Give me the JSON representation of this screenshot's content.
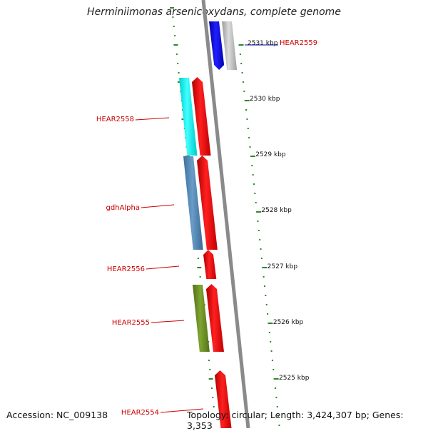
{
  "title": "Herminiimonas arsenicoxydans, complete genome",
  "footer": {
    "accession": "Accession: NC_009138",
    "topology": "Topology: circular; Length: 3,424,307 bp; Genes: 3,353"
  },
  "map": {
    "scale_labels": [
      "2531 kbp",
      "2530 kbp",
      "2529 kbp",
      "2528 kbp",
      "2527 kbp",
      "2526 kbp",
      "2525 kbp"
    ],
    "gene_labels": [
      {
        "text": "HEAR2559",
        "color": "#0000cc"
      },
      {
        "text": "HEAR2558",
        "color": "#cc0000"
      },
      {
        "text": "gdhAlpha",
        "color": "#cc0000"
      },
      {
        "text": "HEAR2556",
        "color": "#cc0000"
      },
      {
        "text": "HEAR2555",
        "color": "#cc0000"
      },
      {
        "text": "HEAR2554",
        "color": "#cc0000"
      }
    ],
    "colors": {
      "backbone": "#8a8a8a",
      "tick": "#2a8a2a",
      "forward_cds": "#ff0000",
      "hear2559": "#1010ff",
      "hear2559_partner": "#c8c8c8",
      "hear2558_cog": "#00ffff",
      "gdhalpha_cog": "#4682b4",
      "hear2555_cog": "#6b8e23"
    }
  }
}
